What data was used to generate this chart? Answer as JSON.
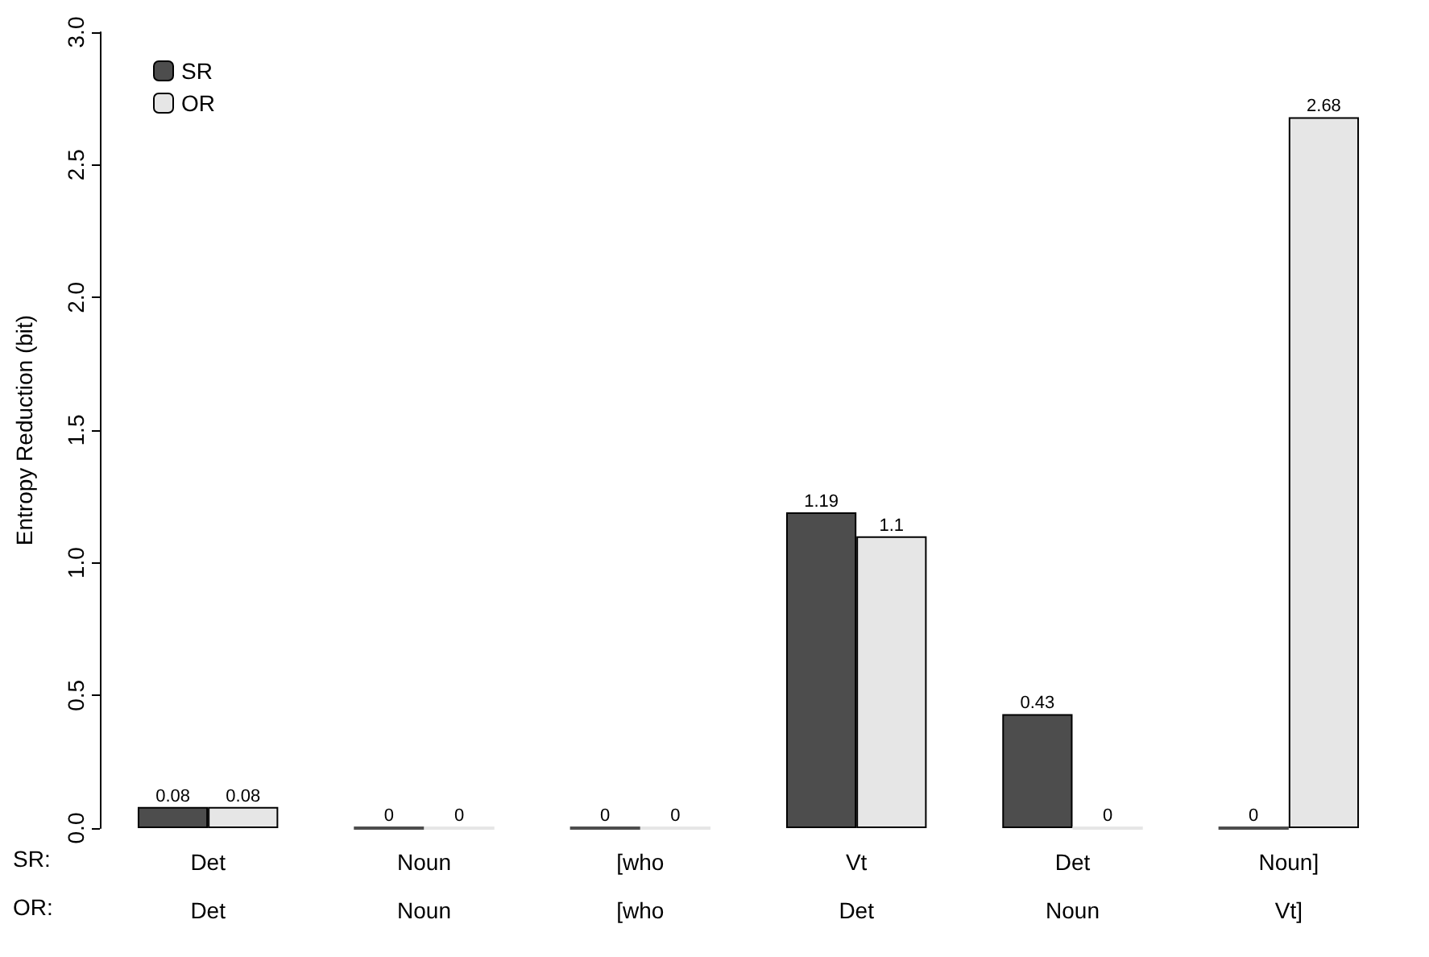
{
  "chart_data": {
    "type": "bar",
    "ylabel": "Entropy Reduction (bit)",
    "categories": [
      "Det\nDet",
      "Noun\nNoun",
      "[who\n[who",
      "Vt\nDet",
      "Det\nNoun",
      "Noun]\nVt]"
    ],
    "series": [
      {
        "name": "SR",
        "color": "#4d4d4d",
        "values": [
          0.08,
          0,
          0,
          1.19,
          0.43,
          0
        ]
      },
      {
        "name": "OR",
        "color": "#e6e6e6",
        "values": [
          0.08,
          0,
          0,
          1.1,
          0,
          2.68
        ]
      }
    ],
    "annotations": [
      "SR:",
      "OR:"
    ],
    "ylim": [
      0,
      3
    ],
    "yticks": [
      {
        "value": 0,
        "label": "0.0"
      },
      0.5,
      {
        "value": 1,
        "label": "1.0"
      },
      1.5,
      {
        "value": 2,
        "label": "2.0"
      },
      2.5,
      {
        "value": 3,
        "label": "3.0"
      }
    ],
    "grid": false,
    "legend": "top left",
    "data_labels": true
  }
}
